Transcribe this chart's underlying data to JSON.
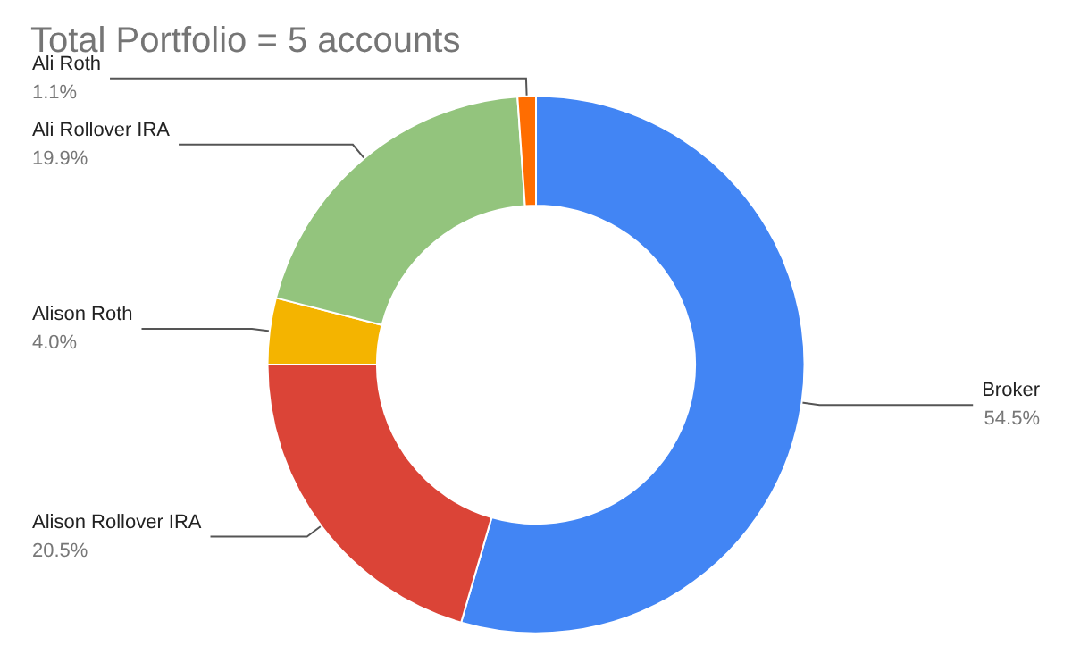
{
  "chart_data": {
    "type": "donut",
    "title": "Total Portfolio = 5 accounts",
    "categories": [
      "Broker",
      "Alison Rollover IRA",
      "Alison Roth",
      "Ali Rollover IRA",
      "Ali Roth"
    ],
    "values": [
      54.5,
      20.5,
      4.0,
      19.9,
      1.1
    ],
    "value_labels": [
      "54.5%",
      "20.5%",
      "4.0%",
      "19.9%",
      "1.1%"
    ],
    "colors": [
      "#4285f4",
      "#db4437",
      "#f4b400",
      "#93c47d",
      "#ff6d01"
    ],
    "legend": false
  }
}
